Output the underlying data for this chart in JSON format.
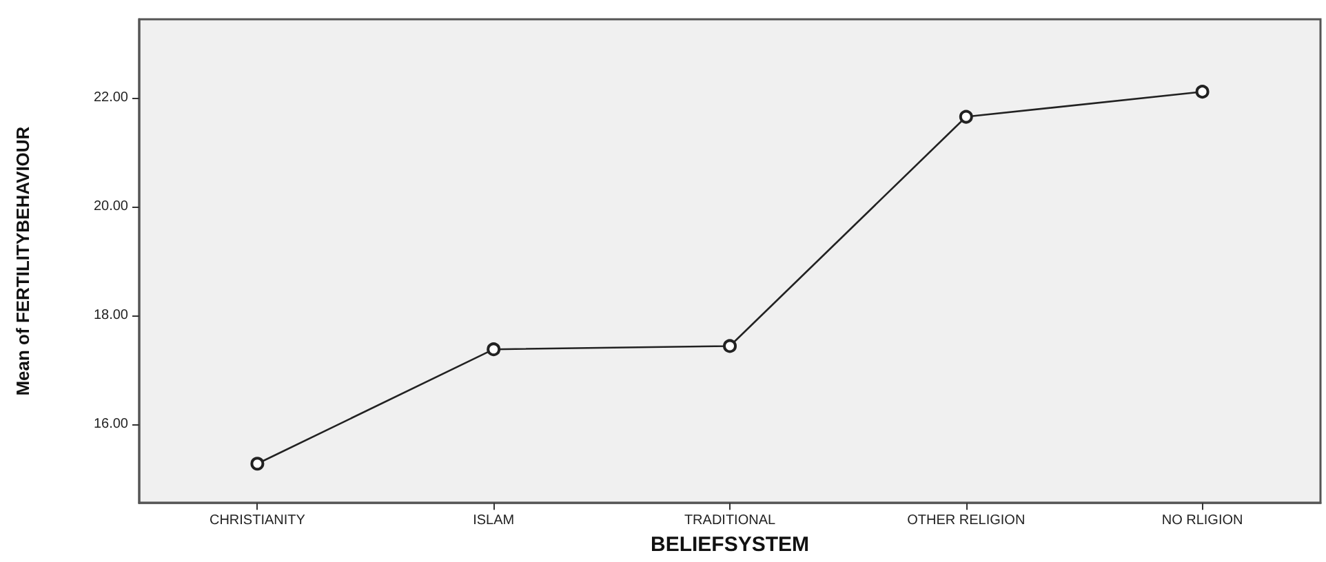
{
  "chart_data": {
    "type": "line",
    "xlabel": "BELIEFSYSTEM",
    "ylabel": "Mean of FERTILITYBEHAVIOUR",
    "categories": [
      "CHRISTIANITY",
      "ISLAM",
      "TRADITIONAL",
      "OTHER RELIGION",
      "NO RLIGION"
    ],
    "series": [
      {
        "color": "#222222",
        "values": [
          15.28,
          17.38,
          17.44,
          21.65,
          22.11
        ]
      }
    ],
    "ylim": [
      14.56,
      23.44
    ],
    "yticks": [
      {
        "value": 16,
        "label": "16.00"
      },
      {
        "value": 18,
        "label": "18.00"
      },
      {
        "value": 20,
        "label": "20.00"
      },
      {
        "value": 22,
        "label": "22.00"
      }
    ],
    "marker": "circle",
    "line_style": "solid"
  }
}
